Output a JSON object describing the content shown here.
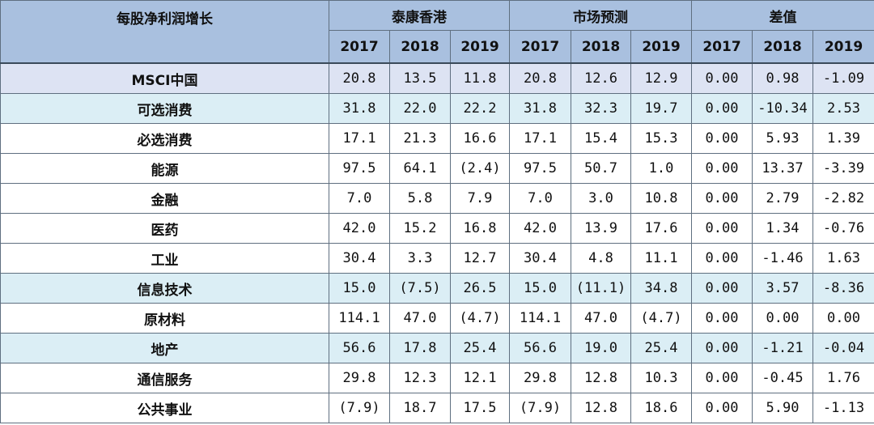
{
  "header": {
    "label": "每股净利润增长",
    "groups": [
      "泰康香港",
      "市场预测",
      "差值"
    ],
    "years": [
      "2017",
      "2018",
      "2019",
      "2017",
      "2018",
      "2019",
      "2017",
      "2018",
      "2019"
    ]
  },
  "rows": [
    {
      "name": "MSCI中国",
      "highlight": true,
      "values": [
        "20.8",
        "13.5",
        "11.8",
        "20.8",
        "12.6",
        "12.9",
        "0.00",
        "0.98",
        "-1.09"
      ]
    },
    {
      "name": "可选消费",
      "highlight": true,
      "values": [
        "31.8",
        "22.0",
        "22.2",
        "31.8",
        "32.3",
        "19.7",
        "0.00",
        "-10.34",
        "2.53"
      ]
    },
    {
      "name": "必选消费",
      "highlight": false,
      "values": [
        "17.1",
        "21.3",
        "16.6",
        "17.1",
        "15.4",
        "15.3",
        "0.00",
        "5.93",
        "1.39"
      ]
    },
    {
      "name": "能源",
      "highlight": false,
      "values": [
        "97.5",
        "64.1",
        "(2.4)",
        "97.5",
        "50.7",
        "1.0",
        "0.00",
        "13.37",
        "-3.39"
      ]
    },
    {
      "name": "金融",
      "highlight": false,
      "values": [
        "7.0",
        "5.8",
        "7.9",
        "7.0",
        "3.0",
        "10.8",
        "0.00",
        "2.79",
        "-2.82"
      ]
    },
    {
      "name": "医药",
      "highlight": false,
      "values": [
        "42.0",
        "15.2",
        "16.8",
        "42.0",
        "13.9",
        "17.6",
        "0.00",
        "1.34",
        "-0.76"
      ]
    },
    {
      "name": "工业",
      "highlight": false,
      "values": [
        "30.4",
        "3.3",
        "12.7",
        "30.4",
        "4.8",
        "11.1",
        "0.00",
        "-1.46",
        "1.63"
      ]
    },
    {
      "name": "信息技术",
      "highlight": true,
      "values": [
        "15.0",
        "(7.5)",
        "26.5",
        "15.0",
        "(11.1)",
        "34.8",
        "0.00",
        "3.57",
        "-8.36"
      ]
    },
    {
      "name": "原材料",
      "highlight": false,
      "values": [
        "114.1",
        "47.0",
        "(4.7)",
        "114.1",
        "47.0",
        "(4.7)",
        "0.00",
        "0.00",
        "0.00"
      ]
    },
    {
      "name": "地产",
      "highlight": true,
      "values": [
        "56.6",
        "17.8",
        "25.4",
        "56.6",
        "19.0",
        "25.4",
        "0.00",
        "-1.21",
        "-0.04"
      ]
    },
    {
      "name": "通信服务",
      "highlight": false,
      "values": [
        "29.8",
        "12.3",
        "12.1",
        "29.8",
        "12.8",
        "10.3",
        "0.00",
        "-0.45",
        "1.76"
      ]
    },
    {
      "name": "公共事业",
      "highlight": false,
      "values": [
        "(7.9)",
        "18.7",
        "17.5",
        "(7.9)",
        "12.8",
        "18.6",
        "0.00",
        "5.90",
        "-1.13"
      ]
    }
  ]
}
